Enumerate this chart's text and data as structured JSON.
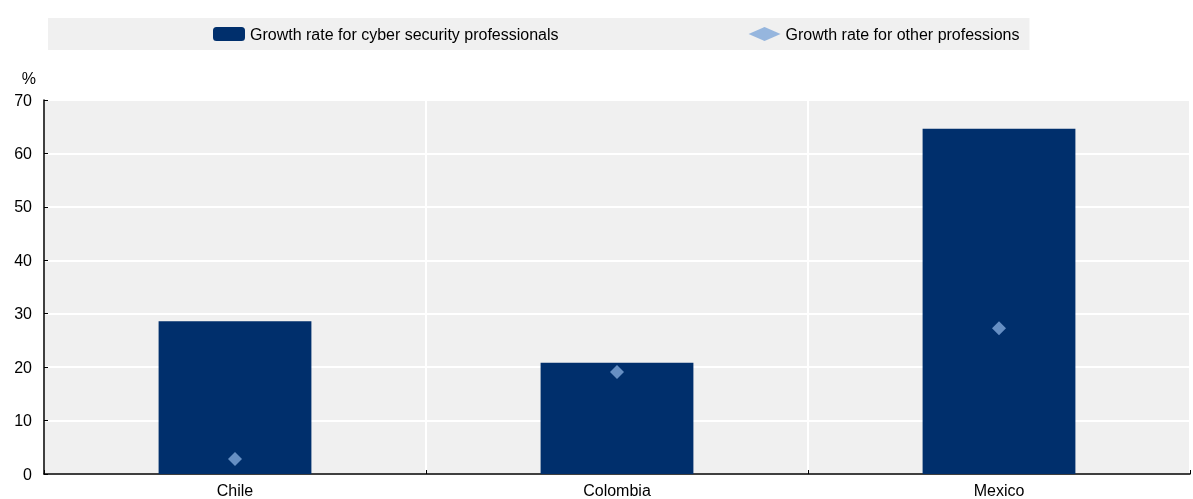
{
  "chart_data": {
    "type": "bar",
    "ylabel": "%",
    "categories": [
      "Chile",
      "Colombia",
      "Mexico"
    ],
    "series": [
      {
        "name": "Growth rate for cyber security professionals",
        "color": "#002f6c",
        "values": [
          28.6,
          20.8,
          64.6
        ]
      },
      {
        "name": "Growth rate for other professions",
        "type": "scatter",
        "color": "#7fa8d9",
        "marker": "diamond",
        "values": [
          2.8,
          19.1,
          27.3
        ]
      }
    ],
    "ylim": [
      0,
      70
    ],
    "yticks": [
      0,
      10,
      20,
      30,
      40,
      50,
      60,
      70
    ],
    "grid": true,
    "legend": "top"
  }
}
